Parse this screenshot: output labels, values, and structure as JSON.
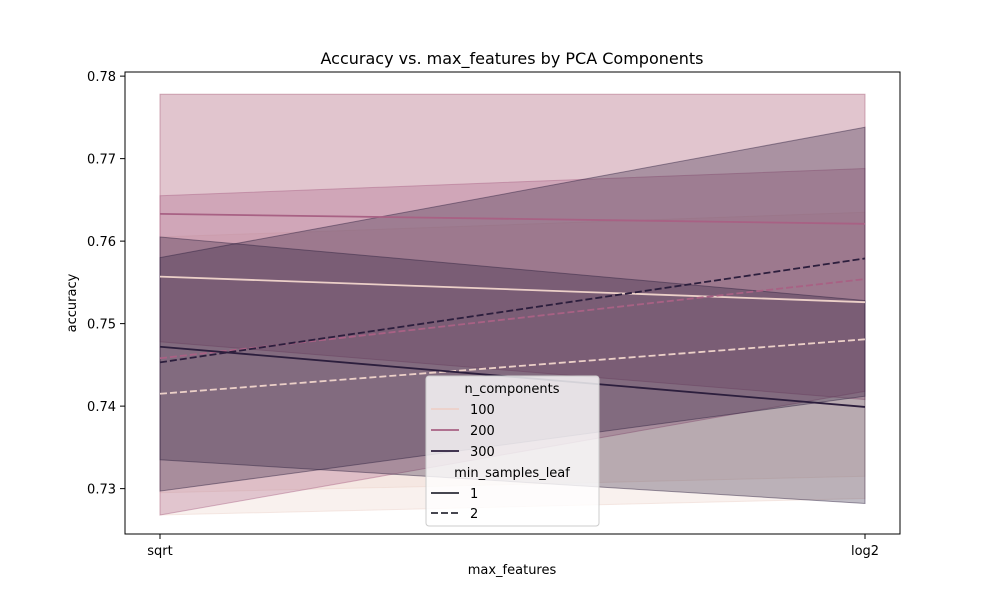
{
  "chart_data": {
    "type": "line",
    "title": "Accuracy vs. max_features by PCA Components",
    "xlabel": "max_features",
    "ylabel": "accuracy",
    "categories": [
      "sqrt",
      "log2"
    ],
    "ylim": [
      0.7245,
      0.7805
    ],
    "yticks": [
      0.73,
      0.74,
      0.75,
      0.76,
      0.77,
      0.78
    ],
    "yticklabels": [
      "0.73",
      "0.74",
      "0.75",
      "0.76",
      "0.77",
      "0.78"
    ],
    "grid": false,
    "legend": {
      "placement": "lower-center",
      "hue_title": "n_components",
      "style_title": "min_samples_leaf",
      "hue_entries": [
        {
          "label": "100",
          "color": "#ecd0c8"
        },
        {
          "label": "200",
          "color": "#a86184"
        },
        {
          "label": "300",
          "color": "#2c1e3d"
        }
      ],
      "style_entries": [
        {
          "label": "1",
          "dash": "solid"
        },
        {
          "label": "2",
          "dash": "dashed"
        }
      ]
    },
    "series": [
      {
        "n_components": "100",
        "min_samples_leaf": "1",
        "color": "#ecd0c8",
        "dash": "solid",
        "values": [
          0.7557,
          0.7526
        ],
        "ci_low": [
          0.7295,
          0.7315
        ],
        "ci_high": [
          0.7778,
          0.7778
        ]
      },
      {
        "n_components": "100",
        "min_samples_leaf": "2",
        "color": "#ecd0c8",
        "dash": "dashed",
        "values": [
          0.7415,
          0.7481
        ],
        "ci_low": [
          0.7268,
          0.7288
        ],
        "ci_high": [
          0.7605,
          0.7635
        ]
      },
      {
        "n_components": "200",
        "min_samples_leaf": "1",
        "color": "#a86184",
        "dash": "solid",
        "values": [
          0.7633,
          0.7621
        ],
        "ci_low": [
          0.7478,
          0.7408
        ],
        "ci_high": [
          0.7778,
          0.7778
        ]
      },
      {
        "n_components": "200",
        "min_samples_leaf": "2",
        "color": "#a86184",
        "dash": "dashed",
        "values": [
          0.7458,
          0.7554
        ],
        "ci_low": [
          0.7268,
          0.7418
        ],
        "ci_high": [
          0.7655,
          0.7688
        ]
      },
      {
        "n_components": "300",
        "min_samples_leaf": "1",
        "color": "#2c1e3d",
        "dash": "solid",
        "values": [
          0.7472,
          0.7399
        ],
        "ci_low": [
          0.7335,
          0.7282
        ],
        "ci_high": [
          0.7605,
          0.7528
        ]
      },
      {
        "n_components": "300",
        "min_samples_leaf": "2",
        "color": "#2c1e3d",
        "dash": "dashed",
        "values": [
          0.7453,
          0.7579
        ],
        "ci_low": [
          0.7297,
          0.7412
        ],
        "ci_high": [
          0.758,
          0.7738
        ]
      }
    ]
  }
}
